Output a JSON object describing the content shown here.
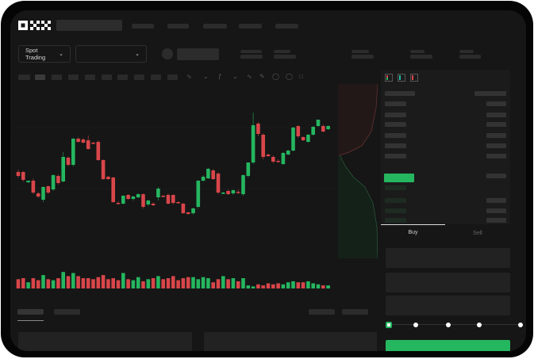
{
  "header": {
    "logo": "OKX"
  },
  "controls": {
    "market_type": "Spot Trading",
    "pair_select": ""
  },
  "trade": {
    "tabs": [
      "Buy",
      "Sell"
    ],
    "active_tab": "Buy",
    "slider_percent": 0
  },
  "colors": {
    "up": "#25b660",
    "down": "#d8464a",
    "background": "#161616",
    "frame": "#050505"
  },
  "icons": [
    "orderbook-both-icon",
    "orderbook-bids-icon",
    "orderbook-asks-icon",
    "chevron-down-icon"
  ],
  "chart_data": {
    "type": "candlestick",
    "candles": [
      [
        96,
        99,
        89,
        91
      ],
      [
        96,
        97,
        84,
        86
      ],
      [
        83,
        85,
        82,
        85
      ],
      [
        85,
        88,
        68,
        70
      ],
      [
        69,
        71,
        63,
        65
      ],
      [
        61,
        78,
        58,
        77
      ],
      [
        78,
        79,
        68,
        70
      ],
      [
        74,
        93,
        72,
        92
      ],
      [
        91,
        93,
        80,
        82
      ],
      [
        84,
        121,
        83,
        115
      ],
      [
        114,
        116,
        103,
        105
      ],
      [
        105,
        139,
        103,
        138
      ],
      [
        138,
        140,
        133,
        134
      ],
      [
        137,
        139,
        132,
        133
      ],
      [
        136,
        142,
        124,
        125
      ],
      [
        133,
        134,
        131,
        132
      ],
      [
        134,
        136,
        110,
        111
      ],
      [
        111,
        112,
        86,
        87
      ],
      [
        90,
        91,
        86,
        87
      ],
      [
        89,
        90,
        57,
        58
      ],
      [
        57,
        59,
        55,
        56
      ],
      [
        56,
        67,
        55,
        66
      ],
      [
        67,
        68,
        61,
        62
      ],
      [
        62,
        66,
        60,
        65
      ],
      [
        64,
        69,
        63,
        68
      ],
      [
        68,
        69,
        50,
        52
      ],
      [
        55,
        61,
        53,
        60
      ],
      [
        56,
        58,
        53,
        54
      ],
      [
        64,
        77,
        60,
        75
      ],
      [
        66,
        67,
        64,
        65
      ],
      [
        67,
        69,
        55,
        56
      ],
      [
        67,
        68,
        55,
        57
      ],
      [
        58,
        59,
        56,
        57
      ],
      [
        56,
        57,
        43,
        44
      ],
      [
        45,
        46,
        42,
        43
      ],
      [
        44,
        51,
        42,
        50
      ],
      [
        52,
        86,
        50,
        85
      ],
      [
        85,
        92,
        84,
        90
      ],
      [
        88,
        101,
        87,
        100
      ],
      [
        98,
        100,
        86,
        87
      ],
      [
        94,
        96,
        68,
        70
      ],
      [
        69,
        71,
        68,
        70
      ],
      [
        72,
        74,
        67,
        68
      ],
      [
        69,
        74,
        67,
        73
      ],
      [
        71,
        74,
        68,
        70
      ],
      [
        68,
        93,
        66,
        92
      ],
      [
        91,
        108,
        89,
        108
      ],
      [
        108,
        171,
        106,
        155
      ],
      [
        157,
        159,
        141,
        144
      ],
      [
        143,
        145,
        112,
        115
      ],
      [
        118,
        119,
        115,
        116
      ],
      [
        115,
        117,
        107,
        109
      ],
      [
        110,
        112,
        108,
        109
      ],
      [
        106,
        121,
        105,
        120
      ],
      [
        118,
        124,
        117,
        123
      ],
      [
        123,
        153,
        122,
        152
      ],
      [
        154,
        155,
        139,
        141
      ],
      [
        140,
        141,
        135,
        136
      ],
      [
        134,
        144,
        133,
        143
      ],
      [
        143,
        154,
        142,
        153
      ],
      [
        154,
        162,
        153,
        162
      ],
      [
        154,
        156,
        146,
        147
      ],
      [
        150,
        155,
        149,
        154
      ]
    ],
    "volume": [
      9,
      10,
      6,
      10,
      8,
      13,
      9,
      8,
      10,
      16,
      12,
      15,
      12,
      10,
      10,
      9,
      11,
      13,
      9,
      10,
      8,
      15,
      9,
      8,
      11,
      7,
      9,
      10,
      12,
      9,
      10,
      12,
      8,
      10,
      11,
      11,
      9,
      11,
      10,
      6,
      9,
      12,
      9,
      10,
      7,
      10,
      3,
      2,
      4,
      3,
      5,
      4,
      5,
      4,
      6,
      7,
      6,
      6,
      7,
      5,
      4,
      3,
      3
    ]
  }
}
